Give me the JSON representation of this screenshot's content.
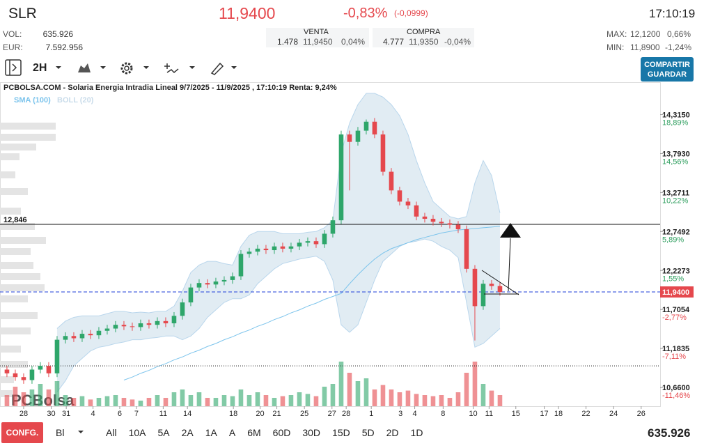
{
  "header": {
    "ticker": "SLR",
    "price": "11,9400",
    "change_pct": "-0,83%",
    "change_abs": "(-0,0999)",
    "time": "17:10:19"
  },
  "stats": {
    "vol_label": "VOL:",
    "vol": "635.926",
    "eur_label": "EUR:",
    "eur": "7.592.956"
  },
  "orderbook": {
    "venta": {
      "label": "VENTA",
      "qty": "1.478",
      "price": "11,9450",
      "pct": "0,04%"
    },
    "compra": {
      "label": "COMPRA",
      "qty": "4.777",
      "price": "11,9350",
      "pct": "-0,04%"
    }
  },
  "range": {
    "max_label": "MAX:",
    "max": "12,1200",
    "max_pct": "0,66%",
    "min_label": "MIN:",
    "min": "11,8900",
    "min_pct": "-1,24%"
  },
  "toolbar": {
    "interval": "2H",
    "share": "COMPARTIR",
    "save": "GUARDAR"
  },
  "footer": {
    "config": "CONFG.",
    "mode": "Bl",
    "periods": [
      "All",
      "10A",
      "5A",
      "2A",
      "1A",
      "A",
      "6M",
      "60D",
      "30D",
      "15D",
      "5D",
      "2D",
      "1D"
    ],
    "volume": "635.926"
  },
  "chart_data": {
    "type": "candlestick",
    "title": "PCBOLSA.COM - Solaria Energia Intradia Lineal 9/7/2025 - 11/9/2025 , 17:10:19 Renta: 9,24%",
    "watermark": "PCBolsa",
    "legend": [
      {
        "name": "SMA (100)",
        "color": "#7cc4ec"
      },
      {
        "name": "BOLL (20)",
        "color": "#c9dcea"
      }
    ],
    "up_color": "#2ea66a",
    "down_color": "#e5484d",
    "x": [
      0,
      1,
      2,
      3,
      4,
      5,
      6,
      7,
      8,
      9,
      10,
      11,
      12,
      13,
      14,
      15,
      16,
      17,
      18,
      19,
      20,
      21,
      22,
      23,
      24,
      25,
      26,
      27,
      28,
      29,
      30,
      31,
      32,
      33,
      34,
      35,
      36,
      37,
      38,
      39,
      40,
      41,
      42,
      43,
      44,
      45,
      46,
      47,
      48,
      49,
      50,
      51,
      52,
      53,
      54,
      55,
      56,
      57,
      58,
      59
    ],
    "open": [
      10.9,
      10.85,
      10.8,
      10.76,
      10.9,
      10.95,
      10.85,
      11.3,
      11.35,
      11.32,
      11.38,
      11.36,
      11.42,
      11.45,
      11.5,
      11.48,
      11.47,
      11.52,
      11.5,
      11.55,
      11.52,
      11.62,
      11.8,
      12.0,
      12.06,
      12.04,
      12.08,
      12.1,
      12.15,
      12.45,
      12.48,
      12.52,
      12.5,
      12.55,
      12.52,
      12.55,
      12.6,
      12.62,
      12.58,
      12.72,
      12.9,
      14.05,
      13.95,
      14.1,
      14.22,
      14.05,
      13.55,
      13.3,
      13.15,
      13.1,
      12.95,
      12.92,
      12.88,
      12.86,
      12.84,
      12.78,
      12.25,
      11.75,
      12.05,
      12.02
    ],
    "high": [
      10.95,
      10.9,
      10.85,
      10.95,
      11.0,
      11.0,
      11.35,
      11.4,
      11.4,
      11.43,
      11.43,
      11.47,
      11.5,
      11.55,
      11.55,
      11.53,
      11.57,
      11.57,
      11.6,
      11.6,
      11.67,
      11.85,
      12.05,
      12.11,
      12.11,
      12.13,
      12.15,
      12.2,
      12.5,
      12.53,
      12.57,
      12.57,
      12.6,
      12.6,
      12.6,
      12.65,
      12.67,
      12.67,
      12.77,
      12.95,
      14.1,
      14.1,
      14.15,
      14.25,
      14.27,
      14.1,
      13.6,
      13.35,
      13.2,
      13.15,
      13.0,
      12.97,
      12.93,
      12.91,
      12.89,
      12.83,
      12.3,
      12.1,
      12.1,
      12.07
    ],
    "low": [
      10.8,
      10.75,
      10.71,
      10.71,
      10.85,
      10.8,
      10.8,
      11.25,
      11.27,
      11.27,
      11.31,
      11.31,
      11.37,
      11.4,
      11.43,
      11.42,
      11.42,
      11.45,
      11.45,
      11.47,
      11.47,
      11.57,
      11.75,
      11.95,
      11.99,
      11.99,
      12.03,
      12.05,
      12.1,
      12.4,
      12.43,
      12.45,
      12.45,
      12.47,
      12.47,
      12.5,
      12.55,
      12.53,
      12.53,
      12.67,
      12.85,
      13.3,
      13.9,
      14.05,
      14.0,
      13.5,
      13.25,
      13.1,
      13.05,
      12.9,
      12.87,
      12.83,
      12.81,
      12.79,
      12.73,
      12.2,
      11.29,
      11.7,
      11.97,
      11.89
    ],
    "close": [
      10.85,
      10.8,
      10.76,
      10.9,
      10.95,
      10.85,
      11.3,
      11.35,
      11.32,
      11.38,
      11.36,
      11.42,
      11.45,
      11.5,
      11.48,
      11.47,
      11.52,
      11.5,
      11.55,
      11.52,
      11.62,
      11.8,
      12.0,
      12.06,
      12.04,
      12.08,
      12.1,
      12.15,
      12.45,
      12.48,
      12.52,
      12.5,
      12.55,
      12.52,
      12.55,
      12.6,
      12.62,
      12.58,
      12.72,
      12.9,
      14.05,
      13.95,
      14.1,
      14.22,
      14.05,
      13.55,
      13.3,
      13.15,
      13.1,
      12.95,
      12.92,
      12.88,
      12.86,
      12.84,
      12.78,
      12.25,
      11.75,
      12.05,
      12.02,
      11.94
    ],
    "volume": [
      20,
      35,
      25,
      30,
      40,
      30,
      45,
      20,
      15,
      18,
      12,
      15,
      18,
      20,
      15,
      12,
      10,
      15,
      20,
      15,
      25,
      30,
      20,
      25,
      15,
      15,
      20,
      18,
      30,
      20,
      25,
      20,
      15,
      18,
      20,
      25,
      22,
      18,
      35,
      40,
      80,
      60,
      45,
      50,
      30,
      38,
      30,
      25,
      28,
      22,
      20,
      18,
      20,
      15,
      25,
      60,
      80,
      40,
      28,
      20
    ],
    "sma": [
      null,
      null,
      null,
      null,
      null,
      null,
      null,
      null,
      null,
      null,
      null,
      null,
      null,
      null,
      10.76,
      10.8,
      10.85,
      10.89,
      10.94,
      10.98,
      11.03,
      11.07,
      11.12,
      11.16,
      11.21,
      11.25,
      11.3,
      11.34,
      11.39,
      11.43,
      11.48,
      11.52,
      11.57,
      11.61,
      11.66,
      11.7,
      11.75,
      11.79,
      11.84,
      11.88,
      11.92,
      12.05,
      12.17,
      12.28,
      12.38,
      12.46,
      12.52,
      12.56,
      12.6,
      12.64,
      12.67,
      12.7,
      12.73,
      12.75,
      12.77,
      12.78,
      12.79,
      12.8,
      12.81,
      12.82
    ],
    "boll_upper": [
      null,
      null,
      null,
      null,
      null,
      null,
      11.45,
      11.55,
      11.6,
      11.62,
      11.62,
      11.62,
      11.65,
      11.68,
      11.68,
      11.66,
      11.67,
      11.66,
      11.68,
      11.68,
      11.75,
      11.95,
      12.2,
      12.3,
      12.35,
      12.35,
      12.32,
      12.3,
      12.55,
      12.7,
      12.75,
      12.75,
      12.75,
      12.72,
      12.72,
      12.72,
      12.74,
      12.75,
      12.8,
      12.9,
      13.8,
      14.2,
      14.45,
      14.6,
      14.6,
      14.55,
      14.45,
      14.3,
      14.05,
      13.7,
      13.4,
      13.15,
      13.05,
      12.95,
      12.92,
      12.95,
      13.4,
      13.7,
      13.5,
      13.0
    ],
    "boll_lower": [
      null,
      null,
      null,
      null,
      null,
      null,
      10.6,
      10.75,
      10.95,
      11.05,
      11.15,
      11.2,
      11.22,
      11.25,
      11.27,
      11.3,
      11.3,
      11.32,
      11.33,
      11.35,
      11.35,
      11.3,
      11.35,
      11.45,
      11.6,
      11.7,
      11.8,
      11.85,
      11.85,
      11.9,
      12.05,
      12.15,
      12.25,
      12.32,
      12.35,
      12.38,
      12.4,
      12.42,
      12.35,
      12.1,
      11.5,
      11.4,
      11.5,
      11.8,
      12.1,
      12.35,
      12.45,
      12.55,
      12.6,
      12.62,
      12.65,
      12.62,
      12.55,
      12.5,
      12.4,
      11.8,
      11.2,
      11.25,
      11.35,
      11.45
    ],
    "xlim": [
      -0.83,
      78.17
    ],
    "ylim": [
      10.41,
      14.6
    ],
    "vlim": [
      0,
      100
    ],
    "xticks": [
      {
        "value": 2,
        "label": "28"
      },
      {
        "value": 5.3,
        "label": "30"
      },
      {
        "value": 7.1,
        "label": "31"
      },
      {
        "value": 10.3,
        "label": "4"
      },
      {
        "value": 13.5,
        "label": "6"
      },
      {
        "value": 15.5,
        "label": "7"
      },
      {
        "value": 18.7,
        "label": "11"
      },
      {
        "value": 21.6,
        "label": "14"
      },
      {
        "value": 27.1,
        "label": "18"
      },
      {
        "value": 30.3,
        "label": "20"
      },
      {
        "value": 32.3,
        "label": "21"
      },
      {
        "value": 35.6,
        "label": "25"
      },
      {
        "value": 38.9,
        "label": "27"
      },
      {
        "value": 40.6,
        "label": "28"
      },
      {
        "value": 43.6,
        "label": "1"
      },
      {
        "value": 47.1,
        "label": "3"
      },
      {
        "value": 48.8,
        "label": "4"
      },
      {
        "value": 52.2,
        "label": "8"
      },
      {
        "value": 55.8,
        "label": "10"
      },
      {
        "value": 57.7,
        "label": "11"
      },
      {
        "value": 60.9,
        "label": "15"
      },
      {
        "value": 64.3,
        "label": "17"
      },
      {
        "value": 66,
        "label": "18"
      },
      {
        "value": 69.3,
        "label": "22"
      },
      {
        "value": 72.6,
        "label": "24"
      },
      {
        "value": 75.9,
        "label": "26"
      }
    ],
    "yticks": [
      {
        "value": 14.315,
        "label": "14,3150"
      },
      {
        "value": 13.793,
        "label": "13,7930"
      },
      {
        "value": 13.2711,
        "label": "13,2711"
      },
      {
        "value": 12.7492,
        "label": "12,7492"
      },
      {
        "value": 12.2273,
        "label": "12,2273"
      },
      {
        "value": 11.7054,
        "label": "11,7054"
      },
      {
        "value": 11.1835,
        "label": "11,1835"
      },
      {
        "value": 10.66,
        "label": "10,6600"
      }
    ],
    "ytick_changes": [
      "18,89%",
      "14,56%",
      "10,22%",
      "5,89%",
      "1,55%",
      "-2,77%",
      "-7,11%",
      "-11,46%"
    ],
    "hlines": [
      {
        "value": 12.846,
        "label": "12,846",
        "color": "#111111",
        "style": "solid"
      },
      {
        "value": 11.94,
        "label": "11,9400",
        "color": "#1f3fd8",
        "style": "dashed"
      },
      {
        "value": 10.95,
        "color": "#111111",
        "style": "dotted"
      }
    ]
  }
}
